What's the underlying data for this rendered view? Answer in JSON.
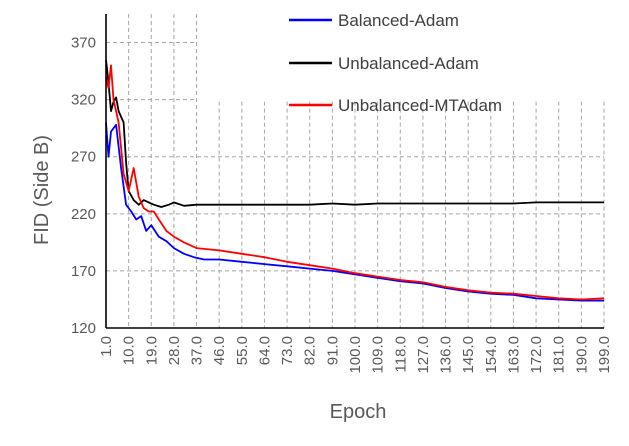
{
  "chart_data": {
    "type": "line",
    "xlabel": "Epoch",
    "ylabel": "FID (Side B)",
    "ylim": [
      120,
      395
    ],
    "xlim": [
      1,
      199
    ],
    "y_ticks": [
      120,
      170,
      220,
      270,
      320,
      370
    ],
    "x_tick_labels": [
      "1.0",
      "10.0",
      "19.0",
      "28.0",
      "37.0",
      "46.0",
      "55.0",
      "64.0",
      "73.0",
      "82.0",
      "91.0",
      "100.0",
      "109.0",
      "118.0",
      "127.0",
      "136.0",
      "145.0",
      "154.0",
      "163.0",
      "172.0",
      "181.0",
      "190.0",
      "199.0"
    ],
    "grid": "dashed",
    "legend_position": "top-right",
    "series": [
      {
        "name": "Balanced-Adam",
        "color": "#0000ff",
        "points": [
          [
            1,
            300
          ],
          [
            2,
            270
          ],
          [
            3,
            292
          ],
          [
            5,
            298
          ],
          [
            7,
            260
          ],
          [
            9,
            228
          ],
          [
            11,
            222
          ],
          [
            13,
            215
          ],
          [
            15,
            218
          ],
          [
            17,
            205
          ],
          [
            19,
            210
          ],
          [
            22,
            200
          ],
          [
            25,
            196
          ],
          [
            28,
            190
          ],
          [
            32,
            185
          ],
          [
            36,
            182
          ],
          [
            40,
            180
          ],
          [
            46,
            180
          ],
          [
            55,
            178
          ],
          [
            64,
            176
          ],
          [
            73,
            174
          ],
          [
            82,
            172
          ],
          [
            91,
            170
          ],
          [
            100,
            167
          ],
          [
            109,
            164
          ],
          [
            118,
            161
          ],
          [
            127,
            159
          ],
          [
            136,
            155
          ],
          [
            145,
            152
          ],
          [
            154,
            150
          ],
          [
            163,
            149
          ],
          [
            172,
            146
          ],
          [
            181,
            145
          ],
          [
            190,
            144
          ],
          [
            199,
            144
          ]
        ]
      },
      {
        "name": "Unbalanced-Adam",
        "color": "#000000",
        "points": [
          [
            1,
            355
          ],
          [
            2,
            335
          ],
          [
            3,
            310
          ],
          [
            4,
            318
          ],
          [
            5,
            322
          ],
          [
            6,
            310
          ],
          [
            8,
            300
          ],
          [
            9,
            265
          ],
          [
            10,
            240
          ],
          [
            12,
            232
          ],
          [
            14,
            228
          ],
          [
            16,
            232
          ],
          [
            18,
            230
          ],
          [
            20,
            228
          ],
          [
            23,
            226
          ],
          [
            26,
            228
          ],
          [
            28,
            230
          ],
          [
            32,
            227
          ],
          [
            37,
            228
          ],
          [
            46,
            228
          ],
          [
            55,
            228
          ],
          [
            64,
            228
          ],
          [
            73,
            228
          ],
          [
            82,
            228
          ],
          [
            91,
            229
          ],
          [
            100,
            228
          ],
          [
            109,
            229
          ],
          [
            118,
            229
          ],
          [
            127,
            229
          ],
          [
            136,
            229
          ],
          [
            145,
            229
          ],
          [
            154,
            229
          ],
          [
            163,
            229
          ],
          [
            172,
            230
          ],
          [
            181,
            230
          ],
          [
            190,
            230
          ],
          [
            199,
            230
          ]
        ]
      },
      {
        "name": "Unbalanced-MTAdam",
        "color": "#ff0000",
        "points": [
          [
            1,
            340
          ],
          [
            2,
            330
          ],
          [
            3,
            350
          ],
          [
            4,
            320
          ],
          [
            6,
            300
          ],
          [
            8,
            255
          ],
          [
            10,
            240
          ],
          [
            12,
            260
          ],
          [
            14,
            235
          ],
          [
            16,
            225
          ],
          [
            18,
            222
          ],
          [
            20,
            222
          ],
          [
            22,
            215
          ],
          [
            25,
            205
          ],
          [
            28,
            200
          ],
          [
            32,
            195
          ],
          [
            37,
            190
          ],
          [
            46,
            188
          ],
          [
            55,
            185
          ],
          [
            64,
            182
          ],
          [
            73,
            178
          ],
          [
            82,
            175
          ],
          [
            91,
            172
          ],
          [
            100,
            168
          ],
          [
            109,
            165
          ],
          [
            118,
            162
          ],
          [
            127,
            160
          ],
          [
            136,
            156
          ],
          [
            145,
            153
          ],
          [
            154,
            151
          ],
          [
            163,
            150
          ],
          [
            172,
            148
          ],
          [
            181,
            146
          ],
          [
            190,
            145
          ],
          [
            199,
            146
          ]
        ]
      }
    ]
  }
}
